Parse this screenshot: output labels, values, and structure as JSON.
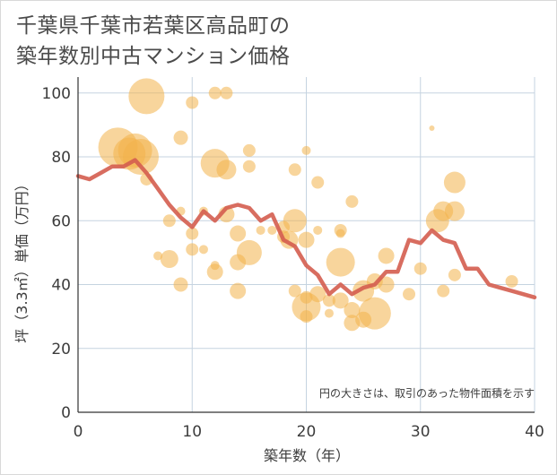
{
  "title_line1": "千葉県千葉市若葉区高品町の",
  "title_line2": "築年数別中古マンション価格",
  "chart_data": {
    "type": "scatter",
    "xlabel": "築年数（年）",
    "ylabel": "坪（3.3㎡）単価（万円）",
    "xlim": [
      0,
      40
    ],
    "ylim": [
      0,
      105
    ],
    "xticks": [
      0,
      10,
      20,
      30,
      40
    ],
    "yticks": [
      0,
      20,
      40,
      60,
      80,
      100
    ],
    "grid": true,
    "note": "円の大きさは、取引のあった物件面積を示す",
    "colors": {
      "bubble": "#f2b34b",
      "line": "#d45d4f",
      "grid": "#c5d3e0",
      "axis": "#333333"
    },
    "bubbles": [
      [
        3.5,
        83,
        22
      ],
      [
        4.5,
        81,
        18
      ],
      [
        5,
        82,
        19
      ],
      [
        5.5,
        80,
        20
      ],
      [
        6,
        73,
        7
      ],
      [
        6,
        99,
        20
      ],
      [
        7,
        49,
        5
      ],
      [
        8,
        48,
        10
      ],
      [
        8,
        60,
        7
      ],
      [
        9,
        40,
        8
      ],
      [
        9,
        63,
        5
      ],
      [
        9,
        86,
        8
      ],
      [
        10,
        97,
        7
      ],
      [
        10,
        56,
        7
      ],
      [
        10,
        51,
        7
      ],
      [
        11,
        63,
        5
      ],
      [
        11,
        51,
        5
      ],
      [
        12,
        100,
        7
      ],
      [
        12,
        78,
        16
      ],
      [
        12,
        44,
        9
      ],
      [
        12,
        46,
        5
      ],
      [
        13,
        76,
        11
      ],
      [
        13,
        100,
        7
      ],
      [
        13,
        62,
        9
      ],
      [
        14,
        56,
        9
      ],
      [
        14,
        47,
        9
      ],
      [
        14,
        38,
        9
      ],
      [
        15,
        82,
        7
      ],
      [
        15,
        77,
        7
      ],
      [
        15,
        50,
        14
      ],
      [
        16,
        57,
        5
      ],
      [
        17,
        57,
        5
      ],
      [
        18,
        58,
        7
      ],
      [
        18,
        55,
        7
      ],
      [
        18.5,
        54,
        10
      ],
      [
        19,
        76,
        7
      ],
      [
        19,
        60,
        13
      ],
      [
        19,
        38,
        7
      ],
      [
        20,
        82,
        5
      ],
      [
        20,
        54,
        9
      ],
      [
        20,
        33,
        16
      ],
      [
        20,
        30,
        7
      ],
      [
        20,
        36,
        7
      ],
      [
        21,
        72,
        7
      ],
      [
        21,
        57,
        5
      ],
      [
        21,
        37,
        9
      ],
      [
        22,
        31,
        5
      ],
      [
        22,
        35,
        7
      ],
      [
        23,
        57,
        7
      ],
      [
        23,
        56,
        5
      ],
      [
        23,
        47,
        16
      ],
      [
        23,
        35,
        9
      ],
      [
        24,
        66,
        7
      ],
      [
        24,
        32,
        9
      ],
      [
        24,
        28,
        9
      ],
      [
        25,
        38,
        12
      ],
      [
        25,
        29,
        9
      ],
      [
        26,
        41,
        9
      ],
      [
        26,
        31,
        18
      ],
      [
        27,
        49,
        9
      ],
      [
        27,
        40,
        9
      ],
      [
        29,
        37,
        7
      ],
      [
        30,
        45,
        7
      ],
      [
        31,
        89,
        3
      ],
      [
        31.5,
        60,
        13
      ],
      [
        32,
        63,
        11
      ],
      [
        32,
        38,
        7
      ],
      [
        33,
        72,
        12
      ],
      [
        33,
        63,
        11
      ],
      [
        33,
        43,
        7
      ],
      [
        38,
        41,
        7
      ]
    ],
    "line": {
      "x": [
        0,
        1,
        2,
        3,
        4,
        5,
        6,
        7,
        8,
        9,
        10,
        11,
        12,
        13,
        14,
        15,
        16,
        17,
        18,
        19,
        20,
        21,
        22,
        23,
        24,
        25,
        26,
        27,
        28,
        29,
        30,
        31,
        32,
        33,
        34,
        35,
        36,
        37,
        38,
        39,
        40
      ],
      "y": [
        74,
        73,
        75,
        77,
        77,
        79,
        75,
        70,
        65,
        61,
        58,
        63,
        60,
        64,
        65,
        64,
        60,
        62,
        54,
        52,
        46,
        43,
        37,
        40,
        37,
        39,
        40,
        44,
        44,
        54,
        53,
        57,
        54,
        53,
        45,
        45,
        40,
        39,
        38,
        37,
        36
      ]
    }
  }
}
